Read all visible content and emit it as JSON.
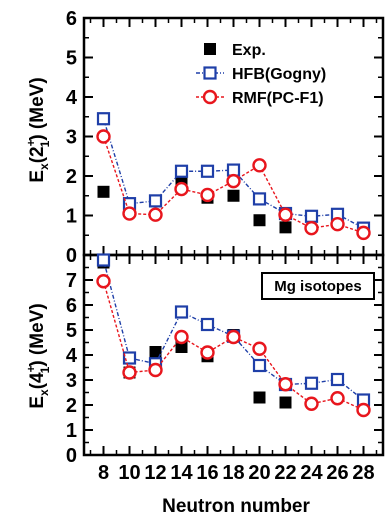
{
  "chart_data": [
    {
      "type": "line",
      "panel": "top",
      "ylabel": "E_x(2_1^+) (MeV)",
      "ylabel_parts": {
        "main": "E",
        "sub1": "x",
        "open": "(",
        "num": "2",
        "sup": "+",
        "sub2": "1",
        "close": ") (MeV)"
      },
      "ylim": [
        0,
        6
      ],
      "yticks": [
        0,
        1,
        2,
        3,
        4,
        5,
        6
      ],
      "yticklabels": [
        "0",
        "1",
        "2",
        "3",
        "4",
        "5",
        "6"
      ],
      "legend_position": "top-right",
      "series": [
        {
          "name": "Exp.",
          "marker": "filled-square",
          "color": "#000000",
          "x": [
            8,
            10,
            12,
            14,
            16,
            18,
            20,
            22
          ],
          "y": [
            1.6,
            1.25,
            1.37,
            1.9,
            1.45,
            1.5,
            0.88,
            0.7
          ]
        },
        {
          "name": "HFB(Gogny)",
          "marker": "open-square",
          "color": "#1f3fa8",
          "x": [
            8,
            10,
            12,
            14,
            16,
            18,
            20,
            22,
            24,
            26,
            28
          ],
          "y": [
            3.45,
            1.3,
            1.37,
            2.12,
            2.12,
            2.15,
            1.42,
            1.05,
            0.98,
            1.03,
            0.68
          ]
        },
        {
          "name": "RMF(PC-F1)",
          "marker": "open-circle",
          "color": "#e8161d",
          "x": [
            8,
            10,
            12,
            14,
            16,
            18,
            20,
            22,
            24,
            26,
            28
          ],
          "y": [
            3.0,
            1.05,
            1.02,
            1.67,
            1.52,
            1.87,
            2.27,
            1.02,
            0.68,
            0.78,
            0.56
          ]
        }
      ]
    },
    {
      "type": "line",
      "panel": "bottom",
      "ylabel": "E_x(4_1^+) (MeV)",
      "ylabel_parts": {
        "main": "E",
        "sub1": "x",
        "open": "(",
        "num": "4",
        "sup": "+",
        "sub2": "1",
        "close": ") (MeV)"
      },
      "xlabel": "Neutron number",
      "xticks": [
        8,
        10,
        12,
        14,
        16,
        18,
        20,
        22,
        24,
        26,
        28
      ],
      "xticklabels": [
        "8",
        "10",
        "12",
        "14",
        "16",
        "18",
        "20",
        "22",
        "24",
        "26",
        "28"
      ],
      "xlim": [
        6.5,
        29.5
      ],
      "ylim": [
        0,
        8
      ],
      "yticks": [
        0,
        1,
        2,
        3,
        4,
        5,
        6,
        7
      ],
      "yticklabels": [
        "0",
        "1",
        "2",
        "3",
        "4",
        "5",
        "6",
        "7"
      ],
      "annotation": "Mg isotopes",
      "series": [
        {
          "name": "Exp.",
          "marker": "filled-square",
          "color": "#000000",
          "x": [
            8,
            10,
            12,
            14,
            16,
            18,
            20,
            22
          ],
          "y": [
            7.7,
            3.3,
            4.12,
            4.32,
            3.95,
            4.8,
            2.3,
            2.1
          ]
        },
        {
          "name": "HFB(Gogny)",
          "marker": "open-square",
          "color": "#1f3fa8",
          "x": [
            8,
            10,
            12,
            14,
            16,
            18,
            20,
            22,
            24,
            26,
            28
          ],
          "y": [
            7.8,
            3.88,
            3.65,
            5.72,
            5.22,
            4.75,
            3.58,
            2.82,
            2.87,
            3.02,
            2.2
          ]
        },
        {
          "name": "RMF(PC-F1)",
          "marker": "open-circle",
          "color": "#e8161d",
          "x": [
            8,
            10,
            12,
            14,
            16,
            18,
            20,
            22,
            24,
            26,
            28
          ],
          "y": [
            6.95,
            3.3,
            3.4,
            4.72,
            4.1,
            4.72,
            4.25,
            2.83,
            2.05,
            2.27,
            1.8
          ]
        }
      ]
    }
  ]
}
